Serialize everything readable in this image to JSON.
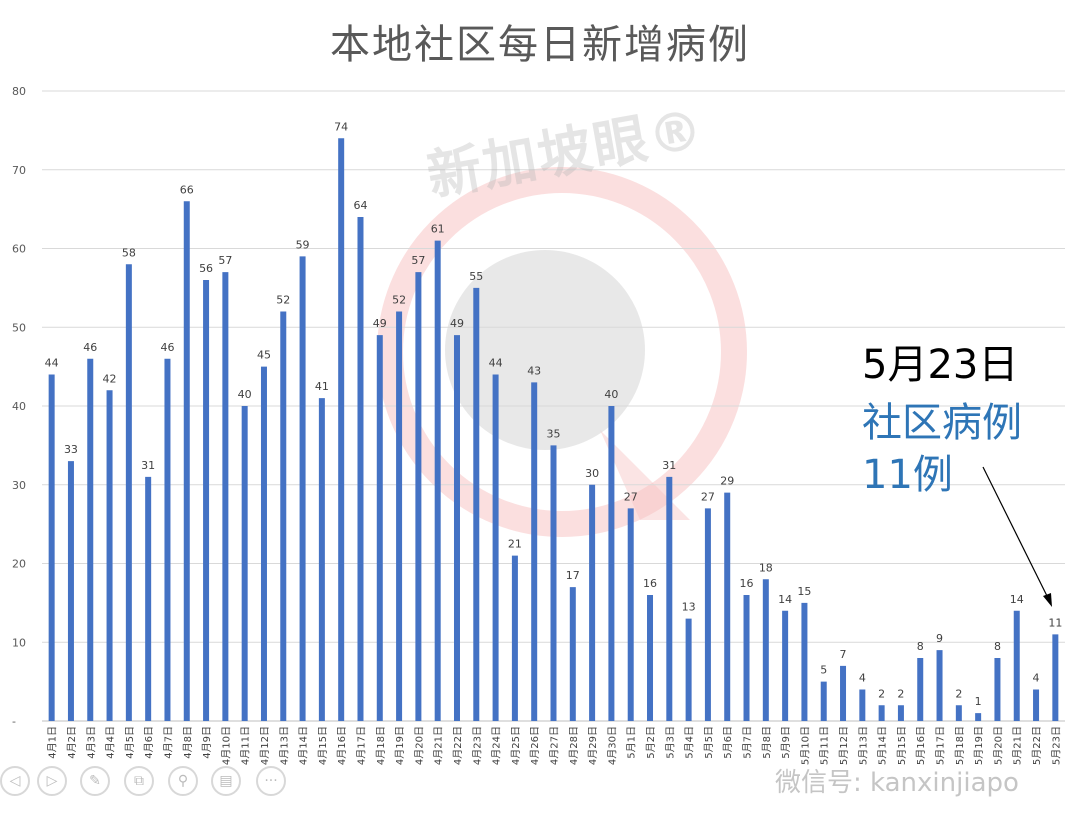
{
  "page": {
    "title": "本地社区每日新增病例",
    "watermark": "新加坡眼®",
    "brand": "微信号: kanxinjiapo"
  },
  "annotation": {
    "date": "5月23日",
    "label": "社区病例",
    "count": "11例"
  },
  "colors": {
    "bar": "#4472c4",
    "title": "#595959",
    "annotation_blue": "#2e75b6",
    "grid": "#d9d9d9",
    "watermark_red": "#f4b6b6"
  },
  "controls": [
    "prev-icon",
    "play-icon",
    "pen-icon",
    "crop-icon",
    "zoom-icon",
    "note-icon",
    "more-icon"
  ],
  "chart_data": {
    "type": "bar",
    "title": "本地社区每日新增病例",
    "xlabel": "",
    "ylabel": "",
    "ylim": [
      0,
      80
    ],
    "yticks": [
      "-",
      "10",
      "20",
      "30",
      "40",
      "50",
      "60",
      "70",
      "80"
    ],
    "grid": true,
    "legend": "none",
    "data_labels": true,
    "categories": [
      "4月1日",
      "4月2日",
      "4月3日",
      "4月4日",
      "4月5日",
      "4月6日",
      "4月7日",
      "4月8日",
      "4月9日",
      "4月10日",
      "4月11日",
      "4月12日",
      "4月13日",
      "4月14日",
      "4月15日",
      "4月16日",
      "4月17日",
      "4月18日",
      "4月19日",
      "4月20日",
      "4月21日",
      "4月22日",
      "4月23日",
      "4月24日",
      "4月25日",
      "4月26日",
      "4月27日",
      "4月28日",
      "4月29日",
      "4月30日",
      "5月1日",
      "5月2日",
      "5月3日",
      "5月4日",
      "5月5日",
      "5月6日",
      "5月7日",
      "5月8日",
      "5月9日",
      "5月10日",
      "5月11日",
      "5月12日",
      "5月13日",
      "5月14日",
      "5月15日",
      "5月16日",
      "5月17日",
      "5月18日",
      "5月19日",
      "5月20日",
      "5月21日",
      "5月22日",
      "5月23日"
    ],
    "values": [
      44,
      33,
      46,
      42,
      58,
      31,
      46,
      66,
      56,
      57,
      40,
      45,
      52,
      59,
      41,
      74,
      64,
      49,
      52,
      57,
      61,
      49,
      55,
      44,
      21,
      43,
      35,
      17,
      30,
      40,
      27,
      16,
      31,
      13,
      27,
      29,
      16,
      18,
      14,
      15,
      5,
      7,
      4,
      2,
      2,
      8,
      9,
      2,
      1,
      8,
      14,
      4,
      11
    ]
  }
}
